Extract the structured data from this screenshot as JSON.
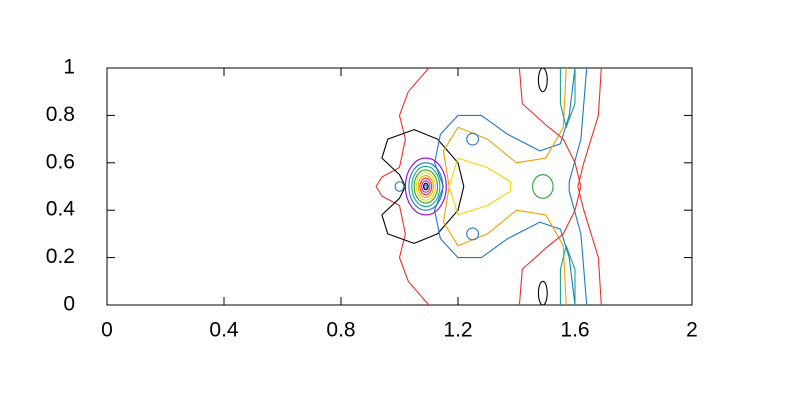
{
  "chart_data": {
    "type": "contour",
    "xlim": [
      0,
      2
    ],
    "xticks": [
      0,
      0.4,
      0.8,
      1.2,
      1.6,
      2
    ],
    "ylim": [
      0,
      1
    ],
    "yticks": [
      0,
      0.2,
      0.4,
      0.6,
      0.8,
      1
    ],
    "contours": [
      {
        "color": "#e8302a",
        "x": [
          1.1,
          1.03,
          1.0,
          1.02,
          1.0,
          0.94,
          0.92,
          0.94,
          1.0,
          1.02,
          1.0,
          1.03,
          1.1
        ],
        "y": [
          1,
          0.9,
          0.8,
          0.7,
          0.58,
          0.54,
          0.5,
          0.46,
          0.42,
          0.3,
          0.2,
          0.1,
          0
        ]
      },
      {
        "color": "#000000",
        "x": [
          1.2,
          1.13,
          1.05,
          0.96,
          0.94,
          1.0,
          1.02,
          1.0,
          0.94,
          0.96,
          1.05,
          1.13,
          1.2,
          1.22,
          1.2
        ],
        "y": [
          0.6,
          0.7,
          0.74,
          0.7,
          0.62,
          0.55,
          0.5,
          0.45,
          0.38,
          0.3,
          0.26,
          0.3,
          0.4,
          0.5,
          0.6
        ]
      },
      {
        "color": "#1f78c8",
        "x": [
          1.6,
          1.58,
          1.55,
          1.48,
          1.37,
          1.28,
          1.2,
          1.14,
          1.12,
          1.15,
          1.12,
          1.14,
          1.2,
          1.28,
          1.37,
          1.48,
          1.55,
          1.58,
          1.6
        ],
        "y": [
          1,
          0.8,
          0.68,
          0.65,
          0.72,
          0.8,
          0.8,
          0.72,
          0.6,
          0.5,
          0.4,
          0.28,
          0.2,
          0.2,
          0.28,
          0.35,
          0.32,
          0.2,
          0
        ]
      },
      {
        "color": "#1f78c8",
        "x": [
          1.64,
          1.62,
          1.58,
          1.58,
          1.62,
          1.64
        ],
        "y": [
          1,
          0.7,
          0.52,
          0.48,
          0.3,
          0
        ]
      },
      {
        "color": "#f0a000",
        "x": [
          1.57,
          1.56,
          1.5,
          1.4,
          1.3,
          1.2,
          1.15,
          1.17,
          1.15,
          1.2,
          1.3,
          1.4,
          1.5,
          1.56,
          1.57
        ],
        "y": [
          1,
          0.75,
          0.62,
          0.6,
          0.7,
          0.75,
          0.65,
          0.5,
          0.35,
          0.25,
          0.3,
          0.4,
          0.38,
          0.25,
          0
        ]
      },
      {
        "color": "#f1d800",
        "x": [
          1.2,
          1.3,
          1.38,
          1.38,
          1.3,
          1.2,
          1.17,
          1.2
        ],
        "y": [
          0.62,
          0.58,
          0.52,
          0.48,
          0.42,
          0.38,
          0.5,
          0.62
        ]
      },
      {
        "color": "#e8302a",
        "x": [
          1.41,
          1.42,
          1.5,
          1.56,
          1.6,
          1.62,
          1.6,
          1.56,
          1.5,
          1.42,
          1.41
        ],
        "y": [
          1,
          0.85,
          0.76,
          0.7,
          0.6,
          0.5,
          0.4,
          0.3,
          0.24,
          0.15,
          0
        ]
      },
      {
        "color": "#e8302a",
        "x": [
          1.69,
          1.68,
          1.63,
          1.61,
          1.63,
          1.68,
          1.69
        ],
        "y": [
          1,
          0.8,
          0.6,
          0.5,
          0.4,
          0.2,
          0
        ]
      },
      {
        "color": "#17a589",
        "x": [
          1.55,
          1.55,
          1.57,
          1.6,
          1.6
        ],
        "y": [
          1,
          0.85,
          0.75,
          0.85,
          1
        ]
      },
      {
        "color": "#17a589",
        "x": [
          1.55,
          1.55,
          1.57,
          1.6,
          1.6
        ],
        "y": [
          0,
          0.15,
          0.25,
          0.15,
          0
        ]
      }
    ],
    "ellipses": [
      {
        "color": "#1f78c8",
        "cx": 1.0,
        "cy": 0.5,
        "rx": 0.015,
        "ry": 0.02
      },
      {
        "color": "#9400d3",
        "cx": 1.09,
        "cy": 0.5,
        "rx": 0.07,
        "ry": 0.12
      },
      {
        "color": "#1f78c8",
        "cx": 1.09,
        "cy": 0.5,
        "rx": 0.058,
        "ry": 0.1
      },
      {
        "color": "#17a589",
        "cx": 1.09,
        "cy": 0.5,
        "rx": 0.048,
        "ry": 0.085
      },
      {
        "color": "#2ca02c",
        "cx": 1.09,
        "cy": 0.5,
        "rx": 0.04,
        "ry": 0.07
      },
      {
        "color": "#f1d800",
        "cx": 1.09,
        "cy": 0.5,
        "rx": 0.033,
        "ry": 0.058
      },
      {
        "color": "#f0a000",
        "cx": 1.09,
        "cy": 0.5,
        "rx": 0.026,
        "ry": 0.046
      },
      {
        "color": "#e8302a",
        "cx": 1.09,
        "cy": 0.5,
        "rx": 0.02,
        "ry": 0.035
      },
      {
        "color": "#d020a0",
        "cx": 1.09,
        "cy": 0.5,
        "rx": 0.014,
        "ry": 0.024
      },
      {
        "color": "#000000",
        "cx": 1.09,
        "cy": 0.5,
        "rx": 0.008,
        "ry": 0.014
      },
      {
        "color": "#1f78c8",
        "cx": 1.09,
        "cy": 0.5,
        "rx": 0.004,
        "ry": 0.007
      },
      {
        "color": "#2ca02c",
        "cx": 1.49,
        "cy": 0.5,
        "rx": 0.035,
        "ry": 0.05
      },
      {
        "color": "#1f78c8",
        "cx": 1.25,
        "cy": 0.7,
        "rx": 0.02,
        "ry": 0.025
      },
      {
        "color": "#1f78c8",
        "cx": 1.25,
        "cy": 0.3,
        "rx": 0.02,
        "ry": 0.025
      },
      {
        "color": "#000000",
        "cx": 1.49,
        "cy": 0.95,
        "rx": 0.015,
        "ry": 0.05
      },
      {
        "color": "#000000",
        "cx": 1.49,
        "cy": 0.05,
        "rx": 0.015,
        "ry": 0.05
      }
    ]
  }
}
